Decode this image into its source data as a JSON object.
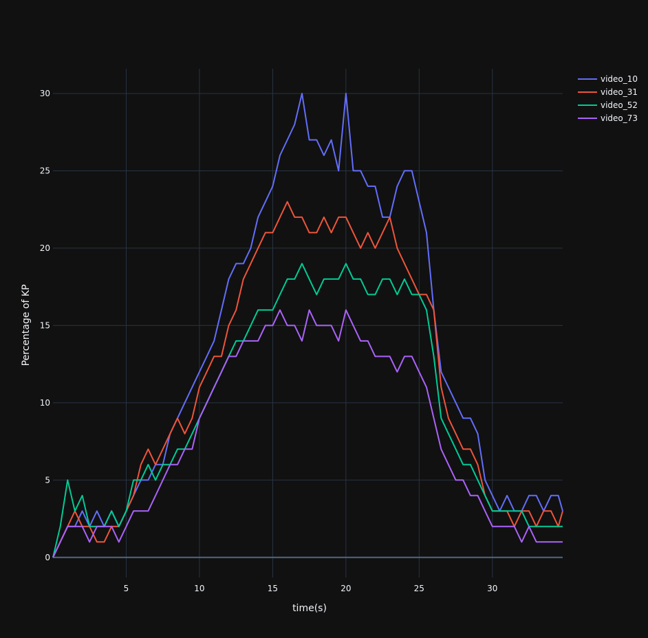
{
  "chart_data": {
    "type": "line",
    "title": "",
    "xlabel": "time(s)",
    "ylabel": "Percentage of KP",
    "xlim": [
      0,
      34.8
    ],
    "ylim": [
      -1.3,
      31.6
    ],
    "x_ticks": [
      5,
      10,
      15,
      20,
      25,
      30
    ],
    "y_ticks": [
      0,
      5,
      10,
      15,
      20,
      25,
      30
    ],
    "grid": true,
    "legend_position": "top-right",
    "series": [
      {
        "name": "video_10",
        "color": "#636efa",
        "x": [
          0,
          0.5,
          1,
          1.5,
          2,
          2.5,
          3,
          3.5,
          4,
          4.5,
          5,
          5.5,
          6,
          6.5,
          7,
          7.5,
          8,
          8.5,
          9,
          9.5,
          10,
          10.5,
          11,
          11.5,
          12,
          12.5,
          13,
          13.5,
          14,
          14.5,
          15,
          15.5,
          16,
          16.5,
          17,
          17.5,
          18,
          18.5,
          19,
          19.5,
          20,
          20.5,
          21,
          21.5,
          22,
          22.5,
          23,
          23.5,
          24,
          24.5,
          25,
          25.5,
          26,
          26.5,
          27,
          27.5,
          28,
          28.5,
          29,
          29.5,
          30,
          30.5,
          31,
          31.5,
          32,
          32.5,
          33,
          33.5,
          34,
          34.5,
          34.8
        ],
        "values": [
          0,
          1,
          2,
          2,
          3,
          2,
          3,
          2,
          3,
          2,
          3,
          4,
          5,
          5,
          6,
          6,
          8,
          9,
          10,
          11,
          12,
          13,
          14,
          16,
          18,
          19,
          19,
          20,
          22,
          23,
          24,
          26,
          27,
          28,
          30,
          27,
          27,
          26,
          27,
          25,
          30,
          25,
          25,
          24,
          24,
          22,
          22,
          24,
          25,
          25,
          23,
          21,
          16,
          12,
          11,
          10,
          9,
          9,
          8,
          5,
          4,
          3,
          4,
          3,
          3,
          4,
          4,
          3,
          4,
          4,
          3
        ]
      },
      {
        "name": "video_31",
        "color": "#ef553b",
        "x": [
          0,
          0.5,
          1,
          1.5,
          2,
          2.5,
          3,
          3.5,
          4,
          4.5,
          5,
          5.5,
          6,
          6.5,
          7,
          7.5,
          8,
          8.5,
          9,
          9.5,
          10,
          10.5,
          11,
          11.5,
          12,
          12.5,
          13,
          13.5,
          14,
          14.5,
          15,
          15.5,
          16,
          16.5,
          17,
          17.5,
          18,
          18.5,
          19,
          19.5,
          20,
          20.5,
          21,
          21.5,
          22,
          22.5,
          23,
          23.5,
          24,
          24.5,
          25,
          25.5,
          26,
          26.5,
          27,
          27.5,
          28,
          28.5,
          29,
          29.5,
          30,
          30.5,
          31,
          31.5,
          32,
          32.5,
          33,
          33.5,
          34,
          34.5,
          34.8
        ],
        "values": [
          0,
          1,
          2,
          3,
          2,
          2,
          1,
          1,
          2,
          2,
          3,
          4,
          6,
          7,
          6,
          7,
          8,
          9,
          8,
          9,
          11,
          12,
          13,
          13,
          15,
          16,
          18,
          19,
          20,
          21,
          21,
          22,
          23,
          22,
          22,
          21,
          21,
          22,
          21,
          22,
          22,
          21,
          20,
          21,
          20,
          21,
          22,
          20,
          19,
          18,
          17,
          17,
          16,
          11,
          9,
          8,
          7,
          7,
          6,
          4,
          3,
          3,
          3,
          2,
          3,
          3,
          2,
          3,
          3,
          2,
          3
        ]
      },
      {
        "name": "video_52",
        "color": "#00cc96",
        "x": [
          0,
          0.5,
          1,
          1.5,
          2,
          2.5,
          3,
          3.5,
          4,
          4.5,
          5,
          5.5,
          6,
          6.5,
          7,
          7.5,
          8,
          8.5,
          9,
          9.5,
          10,
          10.5,
          11,
          11.5,
          12,
          12.5,
          13,
          13.5,
          14,
          14.5,
          15,
          15.5,
          16,
          16.5,
          17,
          17.5,
          18,
          18.5,
          19,
          19.5,
          20,
          20.5,
          21,
          21.5,
          22,
          22.5,
          23,
          23.5,
          24,
          24.5,
          25,
          25.5,
          26,
          26.5,
          27,
          27.5,
          28,
          28.5,
          29,
          29.5,
          30,
          30.5,
          31,
          31.5,
          32,
          32.5,
          33,
          33.5,
          34,
          34.5,
          34.8
        ],
        "values": [
          0,
          2,
          5,
          3,
          4,
          2,
          2,
          2,
          3,
          2,
          3,
          5,
          5,
          6,
          5,
          6,
          6,
          7,
          7,
          8,
          9,
          10,
          11,
          12,
          13,
          14,
          14,
          15,
          16,
          16,
          16,
          17,
          18,
          18,
          19,
          18,
          17,
          18,
          18,
          18,
          19,
          18,
          18,
          17,
          17,
          18,
          18,
          17,
          18,
          17,
          17,
          16,
          13,
          9,
          8,
          7,
          6,
          6,
          5,
          4,
          3,
          3,
          3,
          3,
          3,
          2,
          2,
          2,
          2,
          2,
          2
        ]
      },
      {
        "name": "video_73",
        "color": "#ab63fa",
        "x": [
          0,
          0.5,
          1,
          1.5,
          2,
          2.5,
          3,
          3.5,
          4,
          4.5,
          5,
          5.5,
          6,
          6.5,
          7,
          7.5,
          8,
          8.5,
          9,
          9.5,
          10,
          10.5,
          11,
          11.5,
          12,
          12.5,
          13,
          13.5,
          14,
          14.5,
          15,
          15.5,
          16,
          16.5,
          17,
          17.5,
          18,
          18.5,
          19,
          19.5,
          20,
          20.5,
          21,
          21.5,
          22,
          22.5,
          23,
          23.5,
          24,
          24.5,
          25,
          25.5,
          26,
          26.5,
          27,
          27.5,
          28,
          28.5,
          29,
          29.5,
          30,
          30.5,
          31,
          31.5,
          32,
          32.5,
          33,
          33.5,
          34,
          34.5,
          34.8
        ],
        "values": [
          0,
          1,
          2,
          2,
          2,
          1,
          2,
          2,
          2,
          1,
          2,
          3,
          3,
          3,
          4,
          5,
          6,
          6,
          7,
          7,
          9,
          10,
          11,
          12,
          13,
          13,
          14,
          14,
          14,
          15,
          15,
          16,
          15,
          15,
          14,
          16,
          15,
          15,
          15,
          14,
          16,
          15,
          14,
          14,
          13,
          13,
          13,
          12,
          13,
          13,
          12,
          11,
          9,
          7,
          6,
          5,
          5,
          4,
          4,
          3,
          2,
          2,
          2,
          2,
          1,
          2,
          1,
          1,
          1,
          1,
          1
        ]
      }
    ]
  }
}
